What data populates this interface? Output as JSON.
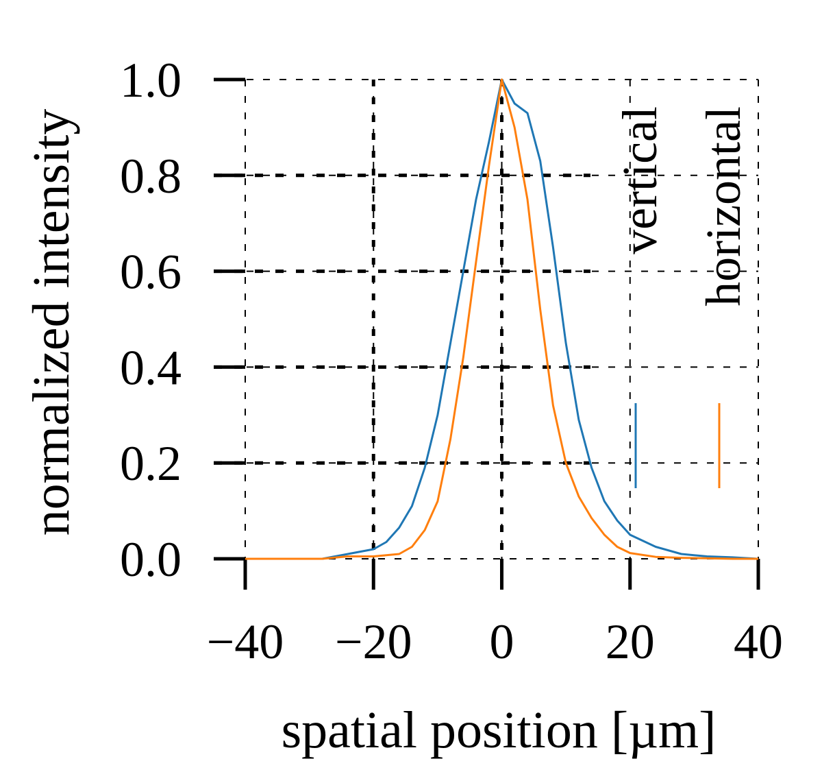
{
  "chart_data": {
    "type": "line",
    "title": "",
    "xlabel": "spatial position [µm]",
    "ylabel": "normalized intensity",
    "xlim": [
      -40,
      40
    ],
    "ylim": [
      0,
      1.0
    ],
    "x_ticks": [
      -40,
      -20,
      0,
      20,
      40
    ],
    "x_tick_labels": [
      "−40",
      "−20",
      "0",
      "20",
      "40"
    ],
    "y_ticks": [
      0.0,
      0.2,
      0.4,
      0.6,
      0.8,
      1.0
    ],
    "y_tick_labels": [
      "0.0",
      "0.2",
      "0.4",
      "0.6",
      "0.8",
      "1.0"
    ],
    "grid": true,
    "legend_placement": "right, rotated vertical entries",
    "series": [
      {
        "name": "vertical",
        "color": "#1f77b4",
        "x": [
          -40,
          -36,
          -32,
          -28,
          -24,
          -20,
          -18,
          -16,
          -14,
          -12,
          -10,
          -8,
          -6,
          -4,
          -2,
          0,
          2,
          4,
          6,
          8,
          10,
          12,
          14,
          16,
          18,
          20,
          24,
          28,
          32,
          36,
          40
        ],
        "y": [
          0.0,
          0.0,
          0.0,
          0.0,
          0.01,
          0.02,
          0.035,
          0.065,
          0.11,
          0.19,
          0.3,
          0.45,
          0.6,
          0.75,
          0.87,
          1.0,
          0.95,
          0.93,
          0.83,
          0.65,
          0.45,
          0.29,
          0.19,
          0.12,
          0.08,
          0.05,
          0.025,
          0.01,
          0.005,
          0.003,
          0.0
        ]
      },
      {
        "name": "horizontal",
        "color": "#ff7f0e",
        "x": [
          -40,
          -36,
          -32,
          -28,
          -24,
          -20,
          -16,
          -14,
          -12,
          -10,
          -8,
          -6,
          -4,
          -2,
          0,
          2,
          4,
          6,
          8,
          10,
          12,
          14,
          16,
          18,
          20,
          24,
          28,
          32,
          36,
          40
        ],
        "y": [
          0.0,
          0.0,
          0.0,
          0.0,
          0.005,
          0.005,
          0.01,
          0.025,
          0.06,
          0.12,
          0.25,
          0.42,
          0.62,
          0.82,
          1.0,
          0.9,
          0.75,
          0.52,
          0.32,
          0.2,
          0.13,
          0.085,
          0.05,
          0.025,
          0.012,
          0.004,
          0.002,
          0.001,
          0.0,
          0.0
        ]
      }
    ]
  }
}
